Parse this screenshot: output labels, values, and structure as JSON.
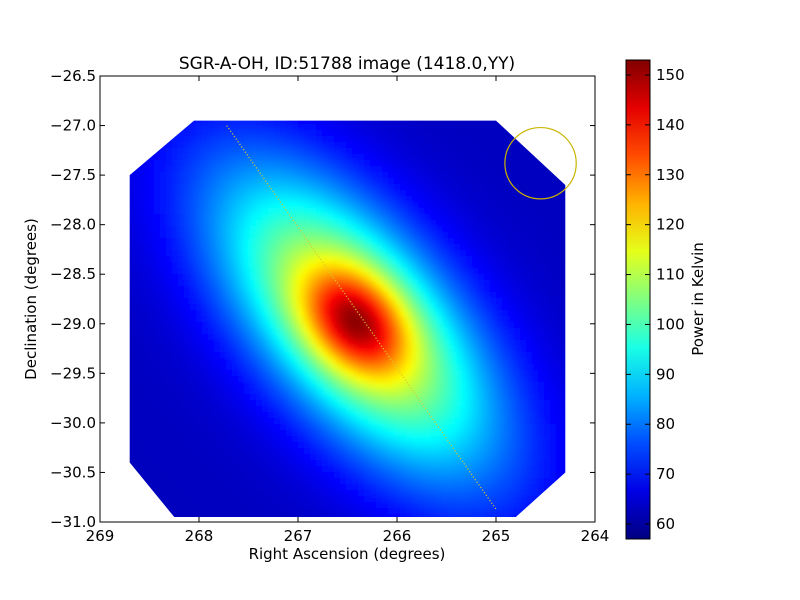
{
  "chart_data": {
    "type": "heatmap",
    "title": "SGR-A-OH, ID:51788 image (1418.0,YY)",
    "xlabel": "Right Ascension (degrees)",
    "ylabel": "Declination (degrees)",
    "colorbar_label": "Power in Kelvin",
    "colormap": "jet",
    "xlim": [
      269,
      264
    ],
    "ylim": [
      -31.0,
      -26.5
    ],
    "x_ticks": [
      269,
      268,
      267,
      266,
      265,
      264
    ],
    "x_tick_labels": [
      "269",
      "268",
      "267",
      "266",
      "265",
      "264"
    ],
    "y_ticks": [
      -26.5,
      -27.0,
      -27.5,
      -28.0,
      -28.5,
      -29.0,
      -29.5,
      -30.0,
      -30.5,
      -31.0
    ],
    "y_tick_labels": [
      "−26.5",
      "−27.0",
      "−27.5",
      "−28.0",
      "−28.5",
      "−29.0",
      "−29.5",
      "−30.0",
      "−30.5",
      "−31.0"
    ],
    "colorbar_range": [
      57,
      153
    ],
    "colorbar_ticks": [
      60,
      70,
      80,
      90,
      100,
      110,
      120,
      130,
      140,
      150
    ],
    "colorbar_tick_labels": [
      "60",
      "70",
      "80",
      "90",
      "100",
      "110",
      "120",
      "130",
      "140",
      "150"
    ],
    "peak": {
      "ra": 266.45,
      "dec": -28.95,
      "value": 152
    },
    "background_value": 63,
    "source_orientation": "elongated along the galactic plane (upper-left to lower-right)",
    "map_region_octagon": [
      [
        268.05,
        -26.95
      ],
      [
        265.0,
        -26.95
      ],
      [
        264.3,
        -27.6
      ],
      [
        264.3,
        -30.5
      ],
      [
        264.8,
        -30.95
      ],
      [
        268.25,
        -30.95
      ],
      [
        268.7,
        -30.4
      ],
      [
        268.7,
        -27.5
      ]
    ],
    "galactic_plane_line": {
      "start": [
        267.72,
        -27.0
      ],
      "end": [
        265.0,
        -30.87
      ],
      "color": "#d8c832",
      "style": "dotted"
    },
    "beam_circle": {
      "ra": 264.55,
      "dec": -27.38,
      "radius_deg": 0.36,
      "color": "#c8b400"
    }
  }
}
